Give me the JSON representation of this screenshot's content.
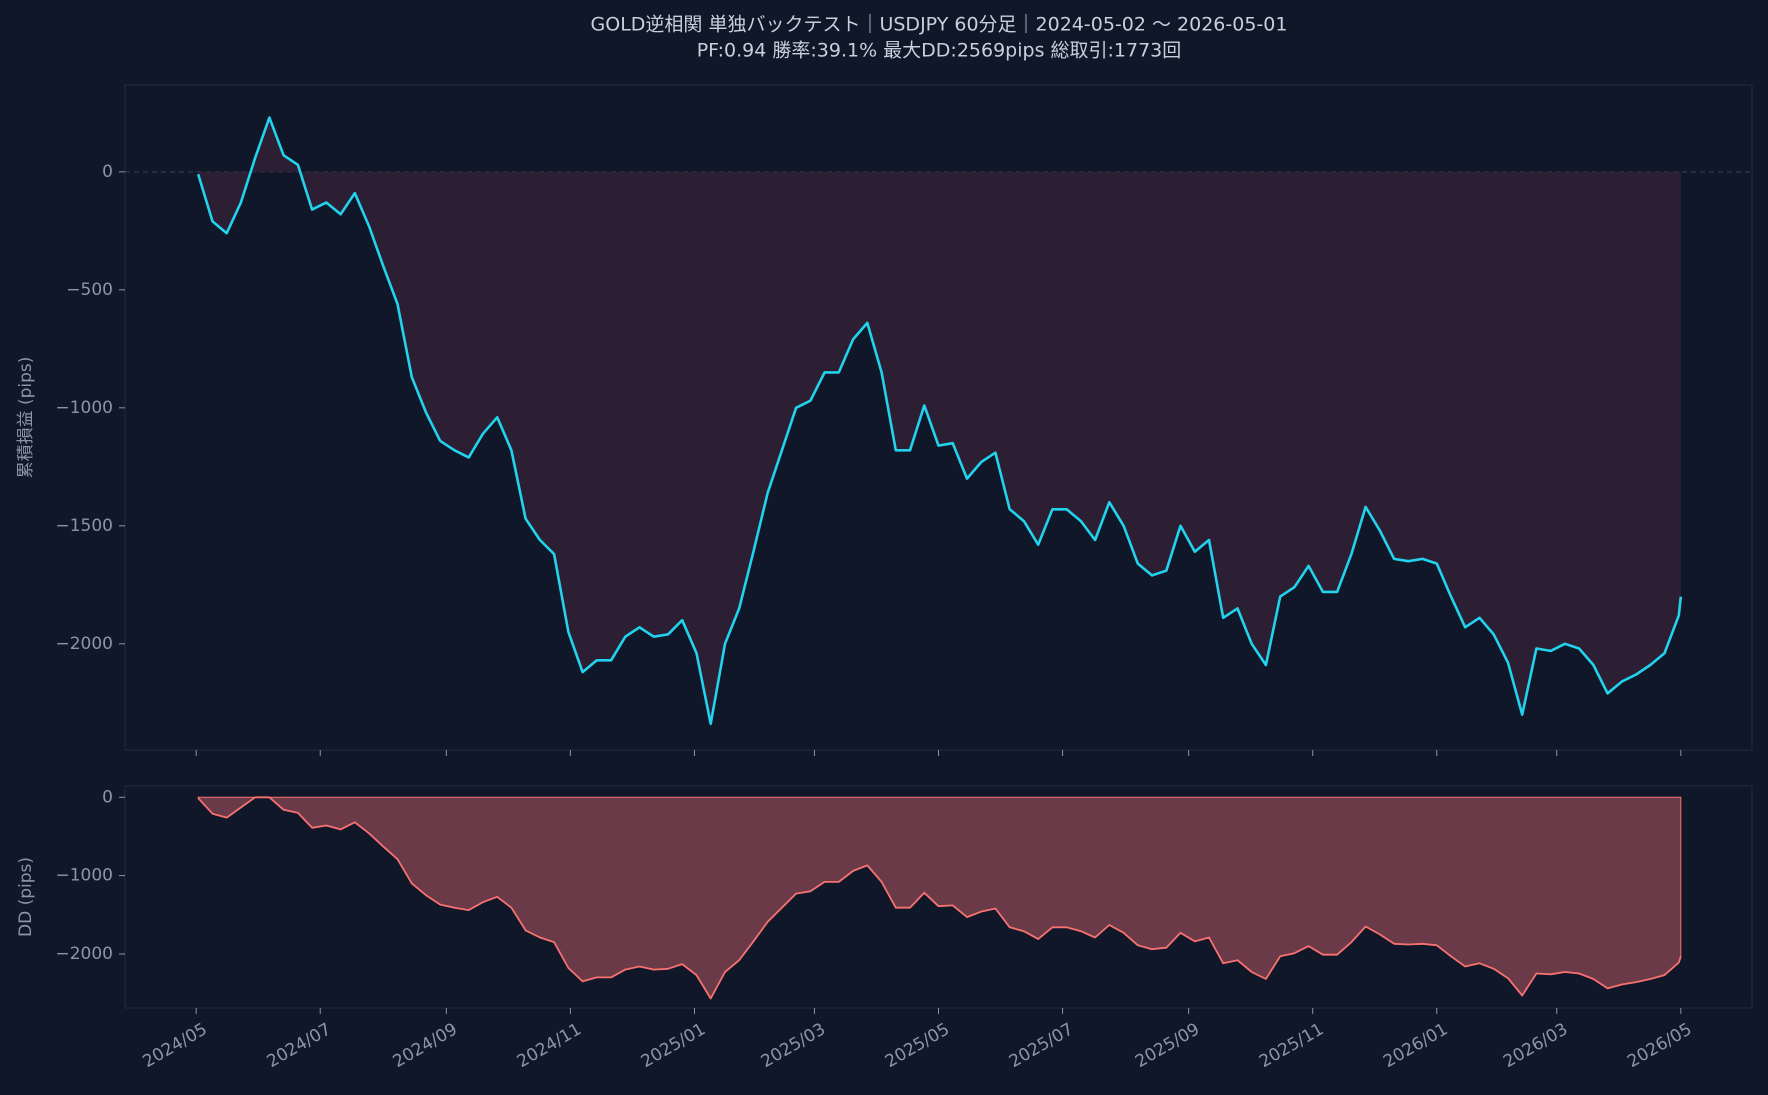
{
  "chart_data": [
    {
      "type": "line",
      "title": "GOLD逆相関 単独バックテスト｜USDJPY 60分足｜2024-05-02 〜 2026-05-01",
      "subtitle": "PF:0.94  勝率:39.1%  最大DD:2569pips  総取引:1773回",
      "ylabel": "累積損益 (pips)",
      "color": "#22d3ee",
      "fill_color": "#2d1f33",
      "hline": 0,
      "xlim": [
        "2024-03-27",
        "2026-06-05"
      ],
      "ylim": [
        -2450,
        368
      ],
      "yticks": [
        0,
        {
          "value": -500,
          "label": "−500"
        },
        {
          "value": -1000,
          "label": "−1000"
        },
        {
          "value": -1500,
          "label": "−1500"
        },
        {
          "value": -2000,
          "label": "−2000"
        }
      ],
      "x": [
        "2024-05-02",
        "2024-05-09",
        "2024-05-16",
        "2024-05-23",
        "2024-05-30",
        "2024-06-06",
        "2024-06-13",
        "2024-06-20",
        "2024-06-27",
        "2024-07-04",
        "2024-07-11",
        "2024-07-18",
        "2024-07-25",
        "2024-08-01",
        "2024-08-08",
        "2024-08-15",
        "2024-08-22",
        "2024-08-29",
        "2024-09-05",
        "2024-09-12",
        "2024-09-19",
        "2024-09-26",
        "2024-10-03",
        "2024-10-10",
        "2024-10-17",
        "2024-10-24",
        "2024-10-31",
        "2024-11-07",
        "2024-11-14",
        "2024-11-21",
        "2024-11-28",
        "2024-12-05",
        "2024-12-12",
        "2024-12-19",
        "2024-12-26",
        "2025-01-02",
        "2025-01-09",
        "2025-01-16",
        "2025-01-23",
        "2025-01-30",
        "2025-02-06",
        "2025-02-13",
        "2025-02-20",
        "2025-02-27",
        "2025-03-06",
        "2025-03-13",
        "2025-03-20",
        "2025-03-27",
        "2025-04-03",
        "2025-04-10",
        "2025-04-17",
        "2025-04-24",
        "2025-05-01",
        "2025-05-08",
        "2025-05-15",
        "2025-05-22",
        "2025-05-29",
        "2025-06-05",
        "2025-06-12",
        "2025-06-19",
        "2025-06-26",
        "2025-07-03",
        "2025-07-10",
        "2025-07-17",
        "2025-07-24",
        "2025-07-31",
        "2025-08-07",
        "2025-08-14",
        "2025-08-21",
        "2025-08-28",
        "2025-09-04",
        "2025-09-11",
        "2025-09-18",
        "2025-09-25",
        "2025-10-02",
        "2025-10-09",
        "2025-10-16",
        "2025-10-23",
        "2025-10-30",
        "2025-11-06",
        "2025-11-13",
        "2025-11-20",
        "2025-11-27",
        "2025-12-04",
        "2025-12-11",
        "2025-12-18",
        "2025-12-25",
        "2026-01-01",
        "2026-01-08",
        "2026-01-15",
        "2026-01-22",
        "2026-01-29",
        "2026-02-05",
        "2026-02-12",
        "2026-02-19",
        "2026-02-26",
        "2026-03-05",
        "2026-03-12",
        "2026-03-19",
        "2026-03-26",
        "2026-04-02",
        "2026-04-09",
        "2026-04-16",
        "2026-04-23",
        "2026-04-30",
        "2026-05-01"
      ],
      "values": [
        -10,
        -210,
        -260,
        -130,
        60,
        230,
        70,
        30,
        -160,
        -130,
        -180,
        -90,
        -230,
        -400,
        -560,
        -870,
        -1020,
        -1140,
        -1180,
        -1210,
        -1110,
        -1040,
        -1180,
        -1470,
        -1560,
        -1620,
        -1950,
        -2120,
        -2070,
        -2070,
        -1970,
        -1930,
        -1970,
        -1960,
        -1900,
        -2040,
        -2339,
        -2000,
        -1850,
        -1610,
        -1360,
        -1180,
        -1000,
        -970,
        -850,
        -850,
        -710,
        -640,
        -850,
        -1180,
        -1180,
        -990,
        -1160,
        -1150,
        -1300,
        -1230,
        -1190,
        -1430,
        -1480,
        -1580,
        -1430,
        -1430,
        -1480,
        -1560,
        -1400,
        -1500,
        -1660,
        -1710,
        -1690,
        -1500,
        -1610,
        -1560,
        -1890,
        -1850,
        -2000,
        -2090,
        -1800,
        -1760,
        -1670,
        -1780,
        -1780,
        -1620,
        -1420,
        -1520,
        -1640,
        -1650,
        -1640,
        -1660,
        -1800,
        -1930,
        -1890,
        -1960,
        -2080,
        -2300,
        -2020,
        -2030,
        -2000,
        -2020,
        -2090,
        -2210,
        -2160,
        -2130,
        -2090,
        -2040,
        -1880,
        -1800
      ]
    },
    {
      "type": "area",
      "ylabel": "DD (pips)",
      "color": "#f87171",
      "fill_color": "#6b3a48",
      "xlim": [
        "2024-03-27",
        "2026-06-05"
      ],
      "ylim": [
        -2690,
        144
      ],
      "yticks": [
        0,
        {
          "value": -1000,
          "label": "−1000"
        },
        {
          "value": -2000,
          "label": "−2000"
        }
      ],
      "xticks": [
        {
          "value": "2024-05-01",
          "label": "2024/05"
        },
        {
          "value": "2024-07-01",
          "label": "2024/07"
        },
        {
          "value": "2024-09-01",
          "label": "2024/09"
        },
        {
          "value": "2024-11-01",
          "label": "2024/11"
        },
        {
          "value": "2025-01-01",
          "label": "2025/01"
        },
        {
          "value": "2025-03-01",
          "label": "2025/03"
        },
        {
          "value": "2025-05-01",
          "label": "2025/05"
        },
        {
          "value": "2025-07-01",
          "label": "2025/07"
        },
        {
          "value": "2025-09-01",
          "label": "2025/09"
        },
        {
          "value": "2025-11-01",
          "label": "2025/11"
        },
        {
          "value": "2026-01-01",
          "label": "2026/01"
        },
        {
          "value": "2026-03-01",
          "label": "2026/03"
        },
        {
          "value": "2026-05-01",
          "label": "2026/05"
        }
      ],
      "x": [
        "2024-05-02",
        "2024-05-09",
        "2024-05-16",
        "2024-05-23",
        "2024-05-30",
        "2024-06-06",
        "2024-06-13",
        "2024-06-20",
        "2024-06-27",
        "2024-07-04",
        "2024-07-11",
        "2024-07-18",
        "2024-07-25",
        "2024-08-01",
        "2024-08-08",
        "2024-08-15",
        "2024-08-22",
        "2024-08-29",
        "2024-09-05",
        "2024-09-12",
        "2024-09-19",
        "2024-09-26",
        "2024-10-03",
        "2024-10-10",
        "2024-10-17",
        "2024-10-24",
        "2024-10-31",
        "2024-11-07",
        "2024-11-14",
        "2024-11-21",
        "2024-11-28",
        "2024-12-05",
        "2024-12-12",
        "2024-12-19",
        "2024-12-26",
        "2025-01-02",
        "2025-01-09",
        "2025-01-16",
        "2025-01-23",
        "2025-01-30",
        "2025-02-06",
        "2025-02-13",
        "2025-02-20",
        "2025-02-27",
        "2025-03-06",
        "2025-03-13",
        "2025-03-20",
        "2025-03-27",
        "2025-04-03",
        "2025-04-10",
        "2025-04-17",
        "2025-04-24",
        "2025-05-01",
        "2025-05-08",
        "2025-05-15",
        "2025-05-22",
        "2025-05-29",
        "2025-06-05",
        "2025-06-12",
        "2025-06-19",
        "2025-06-26",
        "2025-07-03",
        "2025-07-10",
        "2025-07-17",
        "2025-07-24",
        "2025-07-31",
        "2025-08-07",
        "2025-08-14",
        "2025-08-21",
        "2025-08-28",
        "2025-09-04",
        "2025-09-11",
        "2025-09-18",
        "2025-09-25",
        "2025-10-02",
        "2025-10-09",
        "2025-10-16",
        "2025-10-23",
        "2025-10-30",
        "2025-11-06",
        "2025-11-13",
        "2025-11-20",
        "2025-11-27",
        "2025-12-04",
        "2025-12-11",
        "2025-12-18",
        "2025-12-25",
        "2026-01-01",
        "2026-01-08",
        "2026-01-15",
        "2026-01-22",
        "2026-01-29",
        "2026-02-05",
        "2026-02-12",
        "2026-02-19",
        "2026-02-26",
        "2026-03-05",
        "2026-03-12",
        "2026-03-19",
        "2026-03-26",
        "2026-04-02",
        "2026-04-09",
        "2026-04-16",
        "2026-04-23",
        "2026-04-30",
        "2026-05-01"
      ],
      "values": [
        -10,
        -210,
        -260,
        -130,
        0,
        0,
        -160,
        -200,
        -390,
        -360,
        -410,
        -320,
        -460,
        -630,
        -790,
        -1100,
        -1250,
        -1370,
        -1410,
        -1440,
        -1340,
        -1270,
        -1410,
        -1700,
        -1790,
        -1850,
        -2180,
        -2350,
        -2300,
        -2300,
        -2200,
        -2160,
        -2200,
        -2190,
        -2130,
        -2270,
        -2569,
        -2230,
        -2080,
        -1840,
        -1590,
        -1410,
        -1230,
        -1200,
        -1080,
        -1080,
        -940,
        -870,
        -1080,
        -1410,
        -1410,
        -1220,
        -1390,
        -1380,
        -1530,
        -1460,
        -1420,
        -1660,
        -1710,
        -1810,
        -1660,
        -1660,
        -1710,
        -1790,
        -1630,
        -1730,
        -1890,
        -1940,
        -1920,
        -1730,
        -1840,
        -1790,
        -2120,
        -2080,
        -2230,
        -2320,
        -2030,
        -1990,
        -1900,
        -2010,
        -2010,
        -1850,
        -1650,
        -1750,
        -1870,
        -1880,
        -1870,
        -1890,
        -2030,
        -2160,
        -2120,
        -2190,
        -2310,
        -2530,
        -2250,
        -2260,
        -2230,
        -2250,
        -2320,
        -2440,
        -2390,
        -2360,
        -2320,
        -2270,
        -2110,
        -2030
      ]
    }
  ]
}
